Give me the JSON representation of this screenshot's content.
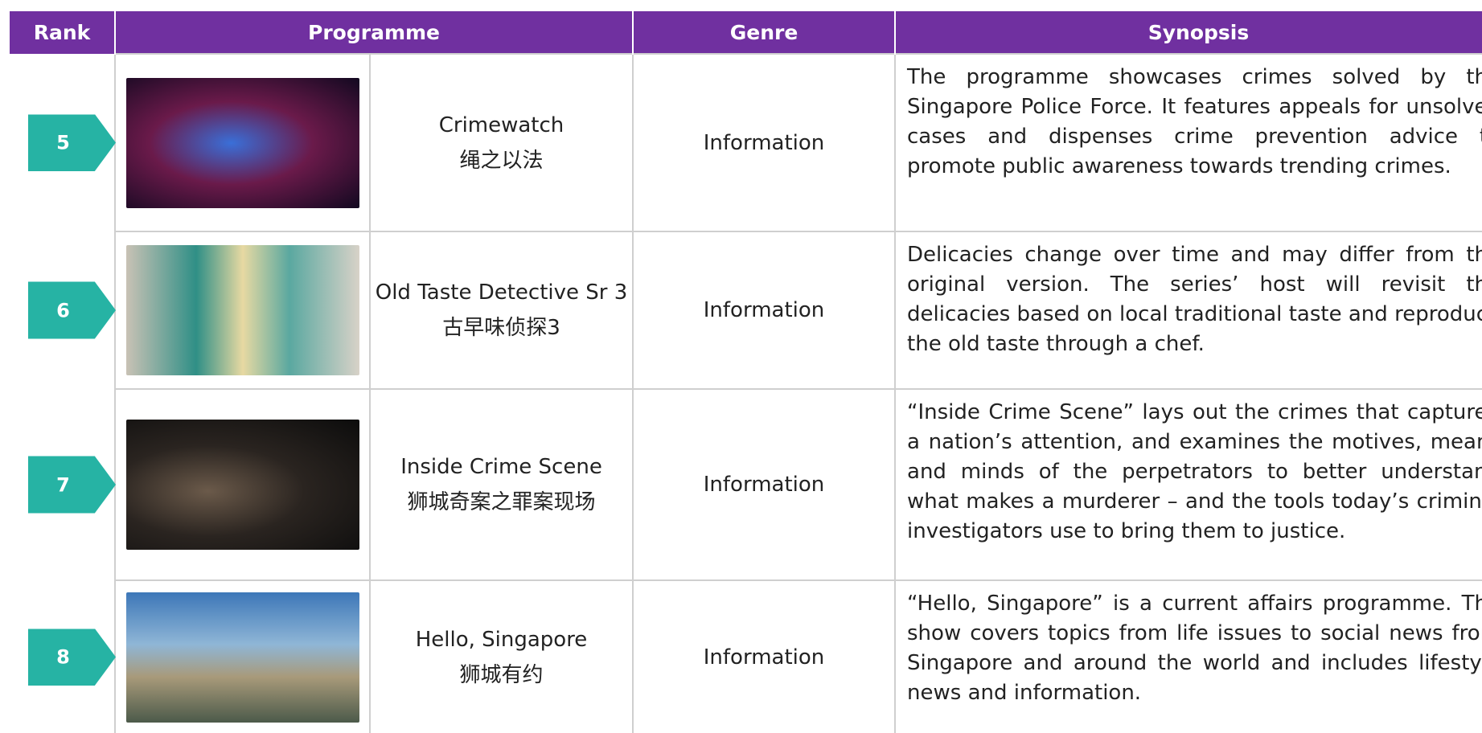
{
  "table": {
    "header": [
      "Rank",
      "Programme",
      "Genre",
      "Synopsis"
    ],
    "rows": [
      {
        "rank": 5,
        "programme": "Crimewatch",
        "programme_chinese": "绳之以法",
        "genre": "Information",
        "synopsis": "The programme showcases crimes solved by the Singapore Police Force. It features appeals for unsolved cases and dispenses crime prevention advice to promote public awareness towards trending crimes."
      },
      {
        "rank": 6,
        "programme": "Old Taste Detective Sr 3",
        "programme_chinese": "古早味侦探3",
        "genre": "Information",
        "synopsis": "Delicacies change over time and may differ from the original version. The series’ host will revisit the delicacies based on local traditional taste and reproduce the old taste through a chef."
      },
      {
        "rank": 7,
        "programme": "Inside Crime Scene",
        "programme_chinese": "狮城奇案之罪案现场",
        "genre": "Information",
        "synopsis": "“Inside Crime Scene” lays out the crimes that captured a nation’s attention, and examines the motives, means and minds of the perpetrators to better understand what makes a murderer – and the tools today’s criminal investigators use to bring them to justice."
      },
      {
        "rank": 8,
        "programme": "Hello, Singapore",
        "programme_chinese": "狮城有约",
        "genre": "Information",
        "synopsis": "“Hello, Singapore” is a current affairs programme.  The show covers topics from life issues to social news from Singapore and around the world and includes lifestyle news and information."
      }
    ]
  }
}
